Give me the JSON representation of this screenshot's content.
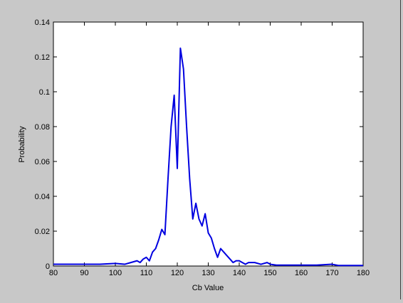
{
  "chart_data": {
    "type": "line",
    "xlabel": "Cb Value",
    "ylabel": "Probability",
    "series": [
      {
        "color": "#0000e0",
        "x": [
          80,
          95,
          100,
          103,
          105,
          107,
          108,
          109,
          110,
          111,
          112,
          113,
          114,
          115,
          116,
          117,
          118,
          119,
          120,
          121,
          122,
          123,
          124,
          125,
          126,
          127,
          128,
          129,
          130,
          131,
          132,
          133,
          134,
          135,
          136,
          137,
          138,
          139,
          140,
          141,
          142,
          143,
          145,
          147,
          149,
          150,
          152,
          155,
          160,
          165,
          170,
          172,
          180
        ],
        "values": [
          0.001,
          0.001,
          0.0015,
          0.001,
          0.002,
          0.003,
          0.002,
          0.004,
          0.005,
          0.003,
          0.008,
          0.01,
          0.015,
          0.021,
          0.018,
          0.05,
          0.08,
          0.098,
          0.056,
          0.125,
          0.113,
          0.08,
          0.05,
          0.027,
          0.036,
          0.027,
          0.023,
          0.03,
          0.019,
          0.016,
          0.01,
          0.005,
          0.01,
          0.008,
          0.006,
          0.004,
          0.002,
          0.003,
          0.003,
          0.002,
          0.001,
          0.002,
          0.002,
          0.001,
          0.002,
          0.001,
          0.0005,
          0.0005,
          0.0005,
          0.0005,
          0.001,
          0.0003,
          0.0003
        ]
      }
    ],
    "xlim": [
      80,
      180
    ],
    "xticks": [
      80,
      90,
      100,
      110,
      120,
      130,
      140,
      150,
      160,
      170,
      180
    ],
    "ylim": [
      0,
      0.14
    ],
    "yticks": [
      0,
      0.02,
      0.04,
      0.06,
      0.08,
      0.1,
      0.12,
      0.14
    ]
  }
}
